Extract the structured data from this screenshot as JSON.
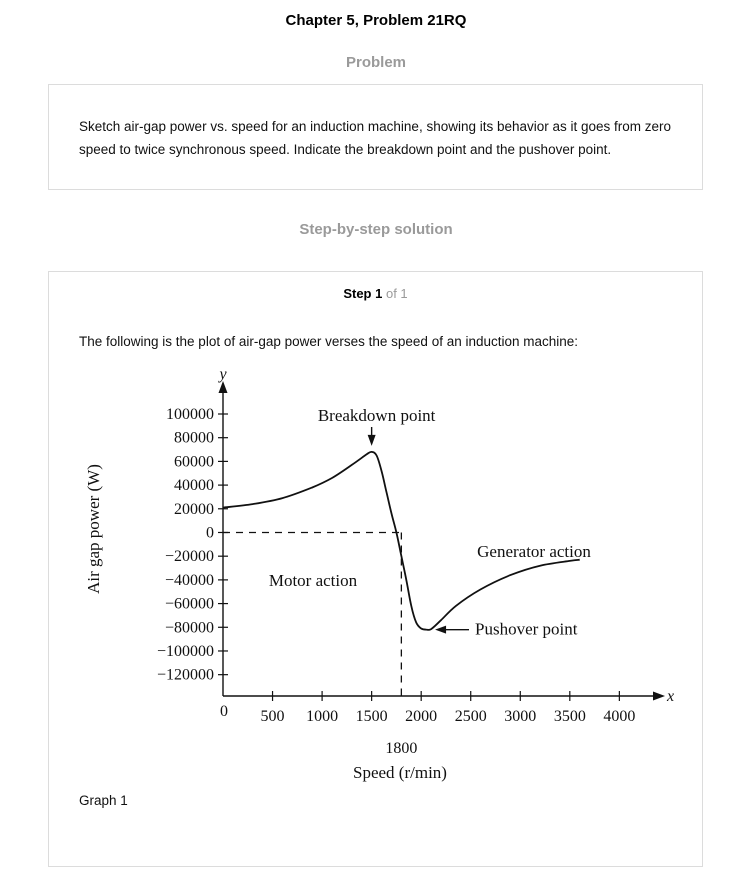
{
  "page": {
    "title": "Chapter 5, Problem 21RQ",
    "problem_heading": "Problem",
    "problem_text": "Sketch air-gap power vs. speed for an induction machine, showing its behavior as it goes from zero speed to twice synchronous speed. Indicate the breakdown point and the pushover point.",
    "solution_heading": "Step-by-step solution"
  },
  "step": {
    "label": "Step 1",
    "of": "of 1",
    "text": "The following is the plot of air-gap power verses the speed of an induction machine:",
    "graph_label": "Graph 1"
  },
  "chart_data": {
    "type": "line",
    "xlabel": "Speed (r/min)",
    "ylabel": "Air gap power (W)",
    "x_axis_symbol": "x",
    "y_axis_symbol": "y",
    "origin_label": "0",
    "x_ticks": [
      "500",
      "1000",
      "1500",
      "2000",
      "2500",
      "3000",
      "3500",
      "4000"
    ],
    "y_ticks": [
      "100000",
      "80000",
      "60000",
      "40000",
      "20000",
      "0",
      "−20000",
      "−40000",
      "−60000",
      "−80000",
      "−100000",
      "−120000"
    ],
    "xlim": [
      0,
      4400
    ],
    "ylim": [
      -138000,
      100000
    ],
    "sync_speed_label": "1800",
    "sync_speed": 1800,
    "series": [
      {
        "x": [
          0,
          300,
          600,
          900,
          1100,
          1300,
          1450,
          1500,
          1550,
          1600,
          1650,
          1700,
          1750,
          1800,
          1850,
          1900,
          1950,
          2000,
          2050,
          2100,
          2200,
          2350,
          2600,
          2900,
          3200,
          3500,
          3600
        ],
        "y": [
          21000,
          24000,
          29000,
          38000,
          46000,
          57000,
          66000,
          68000,
          65000,
          52000,
          34000,
          16000,
          0,
          -20000,
          -40000,
          -62000,
          -76000,
          -81000,
          -82000,
          -81500,
          -74000,
          -62000,
          -48000,
          -36000,
          -28000,
          -24000,
          -23000
        ]
      }
    ],
    "annotations": {
      "breakdown": "Breakdown point",
      "pushover": "Pushover point",
      "motor": "Motor action",
      "generator": "Generator action"
    }
  }
}
